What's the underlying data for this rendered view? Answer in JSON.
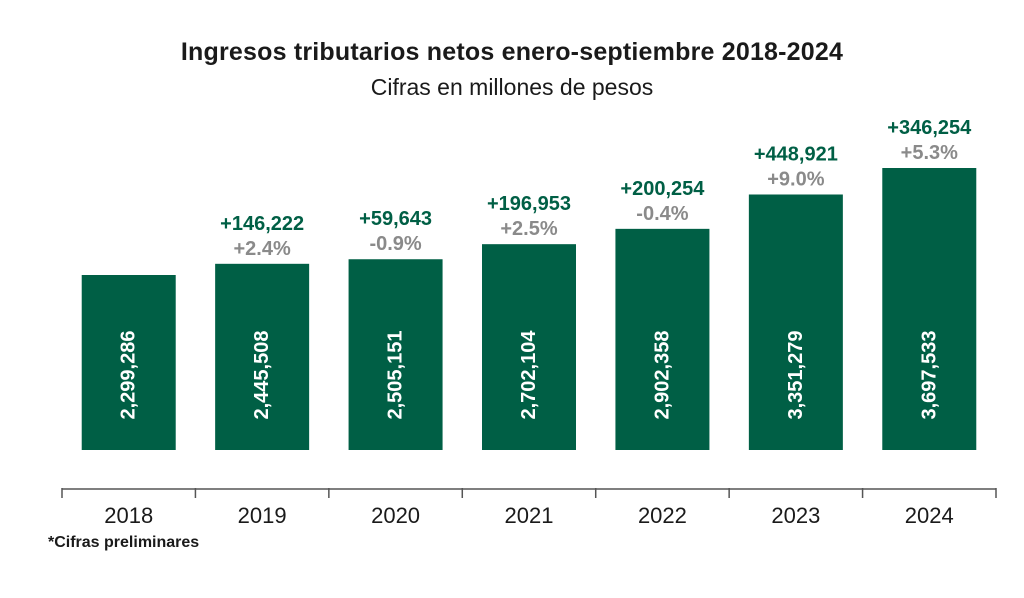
{
  "title": "Ingresos tributarios netos enero-septiembre 2018-2024",
  "subtitle": "Cifras en millones de pesos",
  "footnote": "*Cifras preliminares",
  "colors": {
    "bar": "#005f45",
    "increase_label": "#005f45",
    "percent_label": "#8a8a8a",
    "bar_text": "#ffffff",
    "axis": "#555555"
  },
  "chart_data": {
    "type": "bar",
    "title": "Ingresos tributarios netos enero-septiembre 2018-2024",
    "subtitle": "Cifras en millones de pesos",
    "categories": [
      "2018",
      "2019",
      "2020",
      "2021",
      "2022",
      "2023",
      "2024"
    ],
    "values": [
      2299286,
      2445508,
      2505151,
      2702104,
      2902358,
      3351279,
      3697533
    ],
    "value_labels": [
      "2,299,286",
      "2,445,508",
      "2,505,151",
      "2,702,104",
      "2,902,358",
      "3,351,279",
      "3,697,533"
    ],
    "change_labels": [
      "",
      "+146,222",
      "+59,643",
      "+196,953",
      "+200,254",
      "+448,921",
      "+346,254"
    ],
    "percent_labels": [
      "",
      "+2.4%",
      "-0.9%",
      "+2.5%",
      "-0.4%",
      "+9.0%",
      "+5.3%"
    ],
    "grid": false,
    "legend": "none"
  }
}
